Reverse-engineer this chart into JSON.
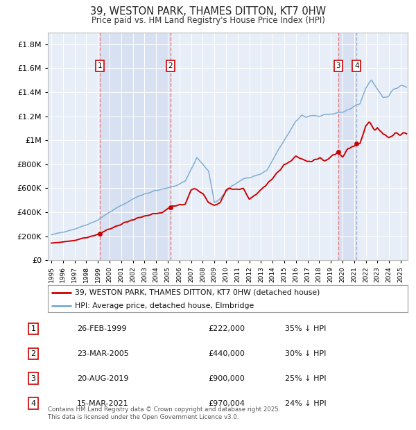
{
  "title": "39, WESTON PARK, THAMES DITTON, KT7 0HW",
  "subtitle": "Price paid vs. HM Land Registry's House Price Index (HPI)",
  "legend_red": "39, WESTON PARK, THAMES DITTON, KT7 0HW (detached house)",
  "legend_blue": "HPI: Average price, detached house, Elmbridge",
  "transactions": [
    {
      "num": 1,
      "date": "26-FEB-1999",
      "price": 222000,
      "pct": "35%",
      "year": 1999.15
    },
    {
      "num": 2,
      "date": "23-MAR-2005",
      "price": 440000,
      "pct": "30%",
      "year": 2005.23
    },
    {
      "num": 3,
      "date": "20-AUG-2019",
      "price": 900000,
      "pct": "25%",
      "year": 2019.64
    },
    {
      "num": 4,
      "date": "15-MAR-2021",
      "price": 970004,
      "pct": "24%",
      "year": 2021.21
    }
  ],
  "footnote1": "Contains HM Land Registry data © Crown copyright and database right 2025.",
  "footnote2": "This data is licensed under the Open Government Licence v3.0.",
  "ylim": [
    0,
    1900000
  ],
  "yticks": [
    0,
    200000,
    400000,
    600000,
    800000,
    1000000,
    1200000,
    1400000,
    1600000,
    1800000
  ],
  "xlim_start": 1994.7,
  "xlim_end": 2025.6,
  "background_color": "#ffffff",
  "plot_bg_color": "#e8eef8",
  "grid_color": "#ffffff",
  "red_color": "#cc0000",
  "blue_color": "#7aaad0",
  "red_dash_color": "#e87070",
  "blue_dash_color": "#99aacc",
  "shade_color": "#ccd8ee",
  "box_edge_color": "#cc0000"
}
